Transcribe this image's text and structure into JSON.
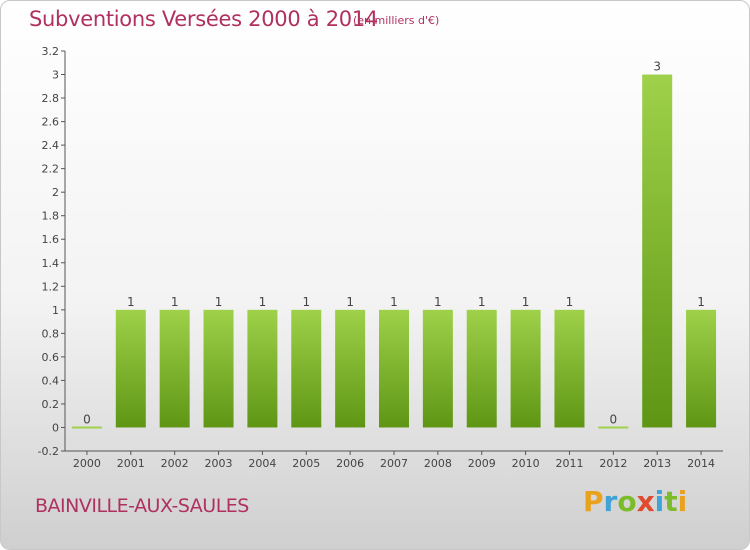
{
  "page": {
    "title": "Subventions Versées 2000 à 2014",
    "unit_note": "(en milliers d'€)",
    "commune": "BAINVILLE-AUX-SAULES",
    "logo": {
      "text": "Proxiti",
      "letters": [
        "P",
        "r",
        "o",
        "x",
        "i",
        "t",
        "i"
      ],
      "colors": [
        "#e9a21d",
        "#3fa3d8",
        "#7cbc2c",
        "#e04a2f",
        "#3fa3d8",
        "#7cbc2c",
        "#e9a21d"
      ]
    }
  },
  "chart_data": {
    "type": "bar",
    "categories": [
      "2000",
      "2001",
      "2002",
      "2003",
      "2004",
      "2005",
      "2006",
      "2007",
      "2008",
      "2009",
      "2010",
      "2011",
      "2012",
      "2013",
      "2014"
    ],
    "values": [
      0,
      1,
      1,
      1,
      1,
      1,
      1,
      1,
      1,
      1,
      1,
      1,
      0,
      3,
      1
    ],
    "data_labels": [
      "0",
      "1",
      "1",
      "1",
      "1",
      "1",
      "1",
      "1",
      "1",
      "1",
      "1",
      "1",
      "0",
      "3",
      "1"
    ],
    "ylim": [
      -0.2,
      3.2
    ],
    "yticks": [
      -0.2,
      0,
      0.2,
      0.4,
      0.6,
      0.8,
      1,
      1.2,
      1.4,
      1.6,
      1.8,
      2,
      2.2,
      2.4,
      2.6,
      2.8,
      3,
      3.2
    ],
    "ytick_labels": [
      "-0.2",
      "0",
      "0.2",
      "0.4",
      "0.6",
      "0.8",
      "1",
      "1.2",
      "1.4",
      "1.6",
      "1.8",
      "2",
      "2.2",
      "2.4",
      "2.6",
      "2.8",
      "3",
      "3.2"
    ],
    "grid": false,
    "colors": {
      "bar_light": "#9fd14a",
      "bar_dark": "#5e9614",
      "label": "#444444",
      "axis": "#555555"
    }
  }
}
